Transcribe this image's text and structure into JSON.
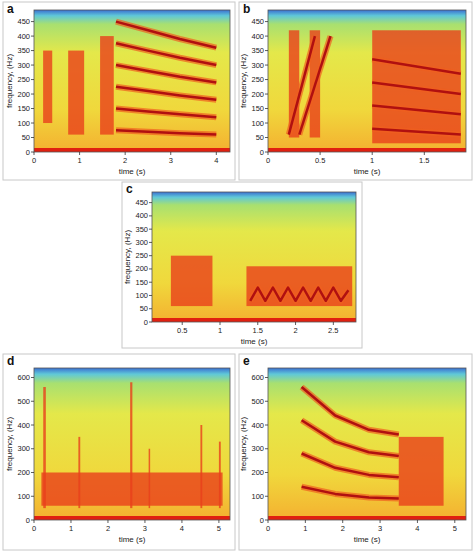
{
  "chart_data": [
    {
      "type": "spectrogram",
      "label": "a",
      "x_label": "time (s)",
      "y_label": "frequency, (Hz)",
      "color": "#b01010",
      "xlim": [
        0,
        4.3
      ],
      "xticks": [
        0,
        1,
        2,
        3,
        4
      ],
      "ylim": [
        0,
        490
      ],
      "yticks": [
        0,
        50,
        100,
        150,
        200,
        250,
        300,
        350,
        400,
        450
      ],
      "regions": [
        {
          "x0": 0.2,
          "x1": 0.4,
          "y0": 100,
          "y1": 350
        },
        {
          "x0": 0.75,
          "x1": 1.1,
          "y0": 60,
          "y1": 350
        },
        {
          "x0": 1.45,
          "x1": 1.75,
          "y0": 60,
          "y1": 400
        }
      ],
      "series": [
        {
          "x": [
            1.8,
            2.5,
            3.2,
            4.0
          ],
          "values": [
            75,
            70,
            65,
            60
          ]
        },
        {
          "x": [
            1.8,
            2.5,
            3.2,
            4.0
          ],
          "values": [
            150,
            140,
            130,
            120
          ]
        },
        {
          "x": [
            1.8,
            2.5,
            3.2,
            4.0
          ],
          "values": [
            225,
            210,
            195,
            180
          ]
        },
        {
          "x": [
            1.8,
            2.5,
            3.2,
            4.0
          ],
          "values": [
            300,
            280,
            260,
            240
          ]
        },
        {
          "x": [
            1.8,
            2.5,
            3.2,
            4.0
          ],
          "values": [
            375,
            350,
            325,
            300
          ]
        },
        {
          "x": [
            1.8,
            2.5,
            3.2,
            4.0
          ],
          "values": [
            450,
            420,
            390,
            360
          ]
        }
      ]
    },
    {
      "type": "spectrogram",
      "label": "b",
      "x_label": "time (s)",
      "y_label": "frequency, (Hz)",
      "color": "#b01010",
      "xlim": [
        0,
        1.9
      ],
      "xticks": [
        0,
        0.5,
        1,
        1.5
      ],
      "ylim": [
        0,
        490
      ],
      "yticks": [
        0,
        50,
        100,
        150,
        200,
        250,
        300,
        350,
        400,
        450
      ],
      "regions": [
        {
          "x0": 0.2,
          "x1": 0.3,
          "y0": 50,
          "y1": 420
        },
        {
          "x0": 0.4,
          "x1": 0.5,
          "y0": 50,
          "y1": 420
        },
        {
          "x0": 1.0,
          "x1": 1.85,
          "y0": 30,
          "y1": 420
        }
      ],
      "series": [
        {
          "x": [
            0.2,
            0.45
          ],
          "values": [
            60,
            400
          ]
        },
        {
          "x": [
            0.3,
            0.6
          ],
          "values": [
            60,
            400
          ]
        },
        {
          "x": [
            1.0,
            1.85
          ],
          "values": [
            80,
            60
          ]
        },
        {
          "x": [
            1.0,
            1.85
          ],
          "values": [
            160,
            130
          ]
        },
        {
          "x": [
            1.0,
            1.85
          ],
          "values": [
            240,
            200
          ]
        },
        {
          "x": [
            1.0,
            1.85
          ],
          "values": [
            320,
            270
          ]
        }
      ]
    },
    {
      "type": "spectrogram",
      "label": "c",
      "x_label": "time (s)",
      "y_label": "frequency, (Hz)",
      "color": "#b01010",
      "xlim": [
        0.1,
        2.8
      ],
      "xticks": [
        0.5,
        1,
        1.5,
        2,
        2.5
      ],
      "ylim": [
        0,
        490
      ],
      "yticks": [
        0,
        50,
        100,
        150,
        200,
        250,
        300,
        350,
        400,
        450
      ],
      "regions": [
        {
          "x0": 0.35,
          "x1": 0.9,
          "y0": 60,
          "y1": 250
        },
        {
          "x0": 1.35,
          "x1": 2.75,
          "y0": 60,
          "y1": 210
        }
      ],
      "series": [
        {
          "x": [
            1.4,
            1.5,
            1.6,
            1.7,
            1.8,
            1.9,
            2.0,
            2.1,
            2.2,
            2.3,
            2.4,
            2.5,
            2.6,
            2.7
          ],
          "values": [
            80,
            130,
            80,
            130,
            80,
            130,
            80,
            130,
            80,
            130,
            80,
            130,
            80,
            120
          ]
        }
      ]
    },
    {
      "type": "spectrogram",
      "label": "d",
      "x_label": "time (s)",
      "y_label": "frequency, (Hz)",
      "color": "#b01010",
      "xlim": [
        0,
        5.3
      ],
      "xticks": [
        0,
        1,
        2,
        3,
        4,
        5
      ],
      "ylim": [
        0,
        640
      ],
      "yticks": [
        0,
        100,
        200,
        300,
        400,
        500,
        600
      ],
      "regions": [
        {
          "x0": 0.2,
          "x1": 5.1,
          "y0": 60,
          "y1": 200
        },
        {
          "x0": 0.25,
          "x1": 0.32,
          "y0": 50,
          "y1": 560
        },
        {
          "x0": 1.2,
          "x1": 1.25,
          "y0": 50,
          "y1": 350
        },
        {
          "x0": 2.6,
          "x1": 2.66,
          "y0": 50,
          "y1": 580
        },
        {
          "x0": 3.1,
          "x1": 3.14,
          "y0": 50,
          "y1": 300
        },
        {
          "x0": 4.5,
          "x1": 4.55,
          "y0": 50,
          "y1": 400
        },
        {
          "x0": 5.0,
          "x1": 5.05,
          "y0": 50,
          "y1": 330
        }
      ],
      "series": []
    },
    {
      "type": "spectrogram",
      "label": "e",
      "x_label": "time (s)",
      "y_label": "frequency, (Hz)",
      "color": "#b01010",
      "xlim": [
        0,
        5.3
      ],
      "xticks": [
        0,
        1,
        2,
        3,
        4,
        5
      ],
      "ylim": [
        0,
        640
      ],
      "yticks": [
        0,
        100,
        200,
        300,
        400,
        500,
        600
      ],
      "regions": [
        {
          "x0": 3.5,
          "x1": 4.7,
          "y0": 60,
          "y1": 350
        }
      ],
      "series": [
        {
          "x": [
            0.9,
            1.8,
            2.7,
            3.5
          ],
          "values": [
            140,
            110,
            95,
            90
          ]
        },
        {
          "x": [
            0.9,
            1.8,
            2.7,
            3.5
          ],
          "values": [
            280,
            220,
            190,
            180
          ]
        },
        {
          "x": [
            0.9,
            1.8,
            2.7,
            3.5
          ],
          "values": [
            420,
            330,
            285,
            270
          ]
        },
        {
          "x": [
            0.9,
            1.8,
            2.7,
            3.5
          ],
          "values": [
            560,
            440,
            380,
            360
          ]
        }
      ]
    }
  ]
}
